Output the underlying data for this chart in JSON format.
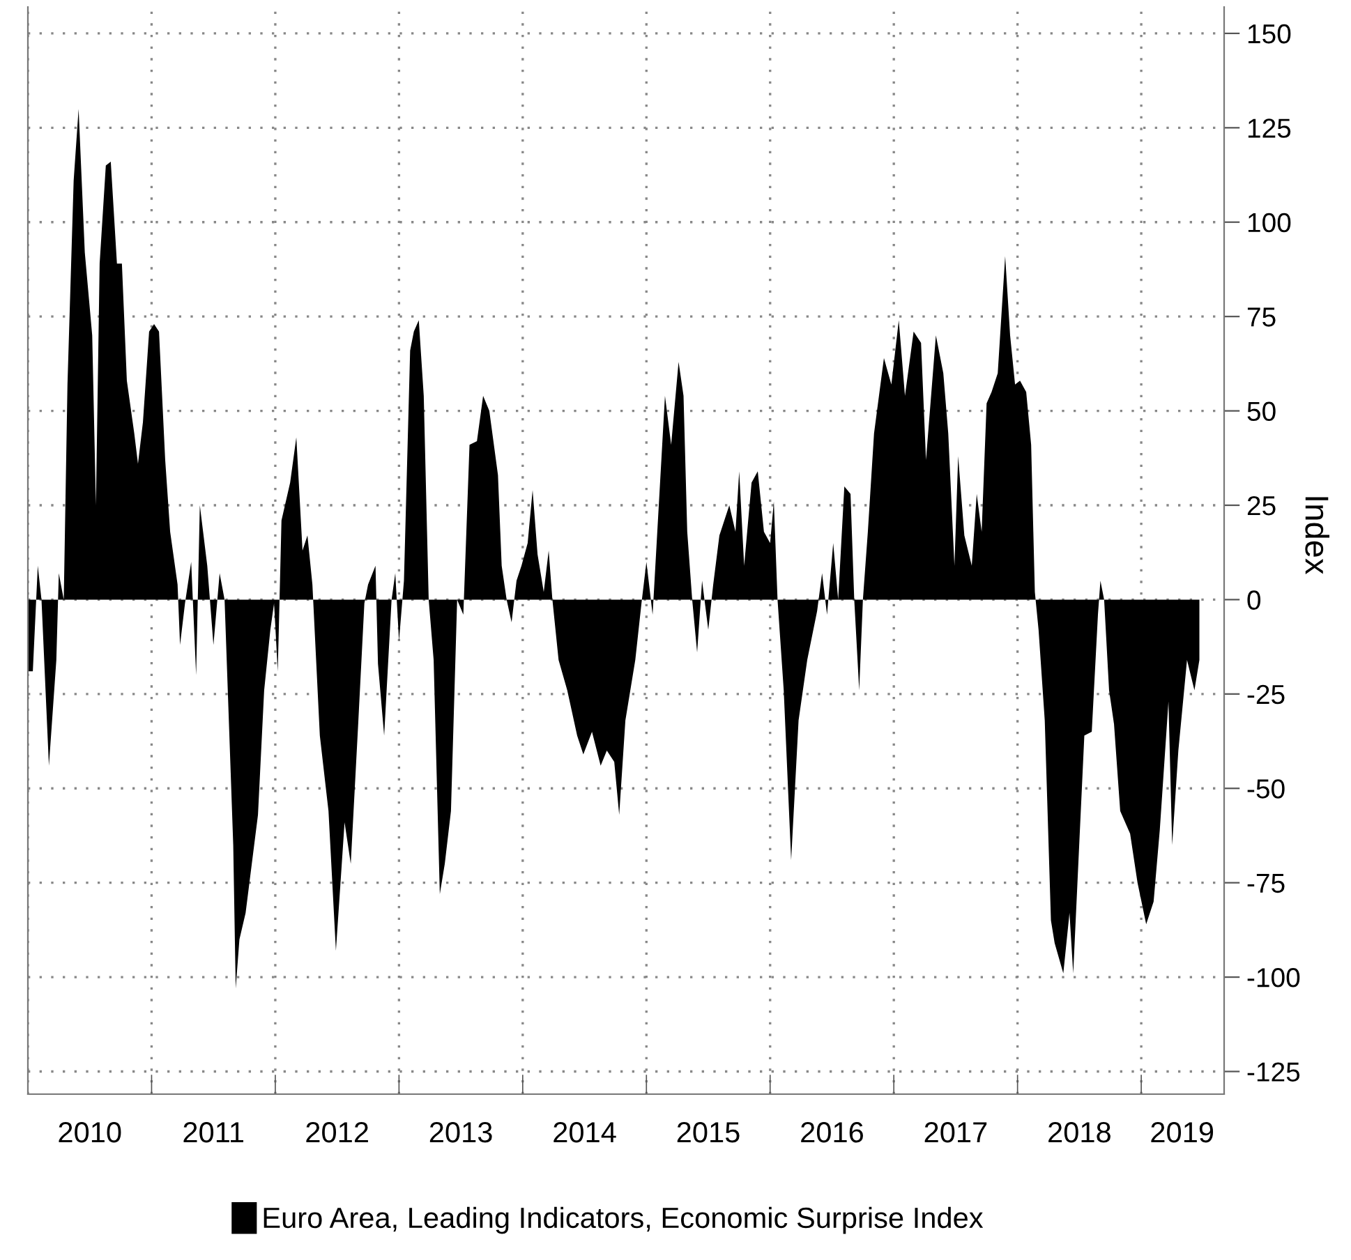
{
  "chart_data": {
    "type": "area",
    "ylabel": "Index",
    "legend": "bottom",
    "grid": true,
    "xlim": [
      2010.0,
      2019.67
    ],
    "ylim": [
      -131,
      157
    ],
    "xticks": [
      {
        "value": 2010,
        "label": null
      },
      {
        "value": 2011,
        "label": null
      },
      {
        "value": 2012,
        "label": null
      },
      {
        "value": 2013,
        "label": null
      },
      {
        "value": 2014,
        "label": null
      },
      {
        "value": 2015,
        "label": null
      },
      {
        "value": 2016,
        "label": null
      },
      {
        "value": 2017,
        "label": null
      },
      {
        "value": 2018,
        "label": null
      },
      {
        "value": 2019,
        "label": null
      },
      {
        "value": 2010.5,
        "label": "2010"
      },
      {
        "value": 2011.5,
        "label": "2011"
      },
      {
        "value": 2012.5,
        "label": "2012"
      },
      {
        "value": 2013.5,
        "label": "2013"
      },
      {
        "value": 2014.5,
        "label": "2014"
      },
      {
        "value": 2015.5,
        "label": "2015"
      },
      {
        "value": 2016.5,
        "label": "2016"
      },
      {
        "value": 2017.5,
        "label": "2017"
      },
      {
        "value": 2018.5,
        "label": "2018"
      },
      {
        "value": 2019.33,
        "label": "2019"
      }
    ],
    "yticks": [
      -125,
      -100,
      -75,
      -50,
      -25,
      0,
      25,
      50,
      75,
      100,
      125,
      150
    ],
    "series": [
      {
        "name": "Euro Area, Leading Indicators, Economic Surprise Index",
        "color": "#000000",
        "x": [
          2010.0,
          2010.04,
          2010.08,
          2010.11,
          2010.17,
          2010.23,
          2010.25,
          2010.29,
          2010.32,
          2010.37,
          2010.41,
          2010.46,
          2010.52,
          2010.55,
          2010.58,
          2010.63,
          2010.67,
          2010.72,
          2010.76,
          2010.8,
          2010.86,
          2010.89,
          2010.93,
          2010.98,
          2011.02,
          2011.06,
          2011.11,
          2011.15,
          2011.21,
          2011.23,
          2011.27,
          2011.32,
          2011.36,
          2011.39,
          2011.45,
          2011.5,
          2011.55,
          2011.59,
          2011.66,
          2011.68,
          2011.71,
          2011.76,
          2011.86,
          2011.91,
          2011.96,
          2011.99,
          2012.02,
          2012.05,
          2012.12,
          2012.17,
          2012.22,
          2012.26,
          2012.3,
          2012.33,
          2012.36,
          2012.43,
          2012.49,
          2012.56,
          2012.61,
          2012.67,
          2012.72,
          2012.75,
          2012.81,
          2012.83,
          2012.88,
          2012.94,
          2012.97,
          2013.0,
          2013.04,
          2013.09,
          2013.12,
          2013.16,
          2013.2,
          2013.24,
          2013.28,
          2013.33,
          2013.37,
          2013.42,
          2013.47,
          2013.52,
          2013.57,
          2013.63,
          2013.68,
          2013.73,
          2013.8,
          2013.83,
          2013.87,
          2013.91,
          2013.95,
          2013.99,
          2014.04,
          2014.08,
          2014.12,
          2014.17,
          2014.21,
          2014.24,
          2014.29,
          2014.36,
          2014.44,
          2014.49,
          2014.56,
          2014.63,
          2014.68,
          2014.74,
          2014.78,
          2014.83,
          2014.91,
          2014.96,
          2015.0,
          2015.05,
          2015.1,
          2015.15,
          2015.2,
          2015.26,
          2015.3,
          2015.33,
          2015.37,
          2015.41,
          2015.45,
          2015.5,
          2015.54,
          2015.59,
          2015.67,
          2015.72,
          2015.75,
          2015.79,
          2015.85,
          2015.9,
          2015.95,
          2016.0,
          2016.03,
          2016.06,
          2016.11,
          2016.17,
          2016.23,
          2016.3,
          2016.38,
          2016.42,
          2016.46,
          2016.51,
          2016.55,
          2016.6,
          2016.65,
          2016.68,
          2016.72,
          2016.75,
          2016.79,
          2016.84,
          2016.92,
          2016.98,
          2017.04,
          2017.09,
          2017.16,
          2017.22,
          2017.26,
          2017.34,
          2017.4,
          2017.44,
          2017.49,
          2017.52,
          2017.57,
          2017.63,
          2017.67,
          2017.71,
          2017.75,
          2017.79,
          2017.84,
          2017.9,
          2017.94,
          2017.98,
          2018.02,
          2018.07,
          2018.11,
          2018.14,
          2018.17,
          2018.22,
          2018.27,
          2018.3,
          2018.37,
          2018.42,
          2018.45,
          2018.5,
          2018.54,
          2018.6,
          2018.65,
          2018.67,
          2018.7,
          2018.74,
          2018.78,
          2018.83,
          2018.91,
          2018.97,
          2019.04,
          2019.1,
          2019.15,
          2019.22,
          2019.25,
          2019.3,
          2019.37,
          2019.43,
          2019.47
        ],
        "values": [
          -19,
          -19,
          9,
          0,
          -44,
          -16,
          7,
          0,
          57,
          111,
          130,
          92,
          70,
          25,
          89,
          115,
          116,
          89,
          89,
          58,
          44,
          36,
          47,
          71,
          73,
          71,
          37,
          18,
          4,
          -12,
          -1,
          10,
          -20,
          25,
          9,
          -12,
          7,
          0,
          -65,
          -103,
          -90,
          -83,
          -57,
          -24,
          -8,
          -1,
          -19,
          21,
          31,
          43,
          13,
          17,
          4,
          -16,
          -36,
          -56,
          -93,
          -59,
          -70,
          -33,
          -1,
          4,
          9,
          -17,
          -36,
          0,
          7,
          -11,
          5,
          66,
          71,
          74,
          54,
          0,
          -16,
          -78,
          -70,
          -56,
          0,
          -4,
          41,
          42,
          54,
          50,
          33,
          9,
          0,
          -6,
          5,
          9,
          15,
          29,
          12,
          2,
          13,
          0,
          -16,
          -24,
          -36,
          -41,
          -35,
          -44,
          -40,
          -43,
          -57,
          -32,
          -16,
          -1,
          10,
          -4,
          25,
          54,
          41,
          63,
          54,
          18,
          0,
          -14,
          5,
          -8,
          4,
          17,
          25,
          18,
          34,
          9,
          31,
          34,
          18,
          15,
          26,
          0,
          -24,
          -69,
          -32,
          -16,
          -3,
          7,
          -4,
          15,
          0,
          30,
          28,
          0,
          -24,
          0,
          18,
          44,
          64,
          57,
          74,
          54,
          71,
          68,
          37,
          70,
          60,
          44,
          9,
          38,
          17,
          9,
          28,
          18,
          52,
          55,
          60,
          91,
          70,
          57,
          58,
          55,
          41,
          2,
          -8,
          -32,
          -85,
          -91,
          -99,
          -83,
          -99,
          -64,
          -36,
          -35,
          -4,
          5,
          0,
          -24,
          -33,
          -56,
          -62,
          -75,
          -86,
          -80,
          -61,
          -27,
          -65,
          -40,
          -16,
          -24,
          -16
        ]
      }
    ]
  }
}
